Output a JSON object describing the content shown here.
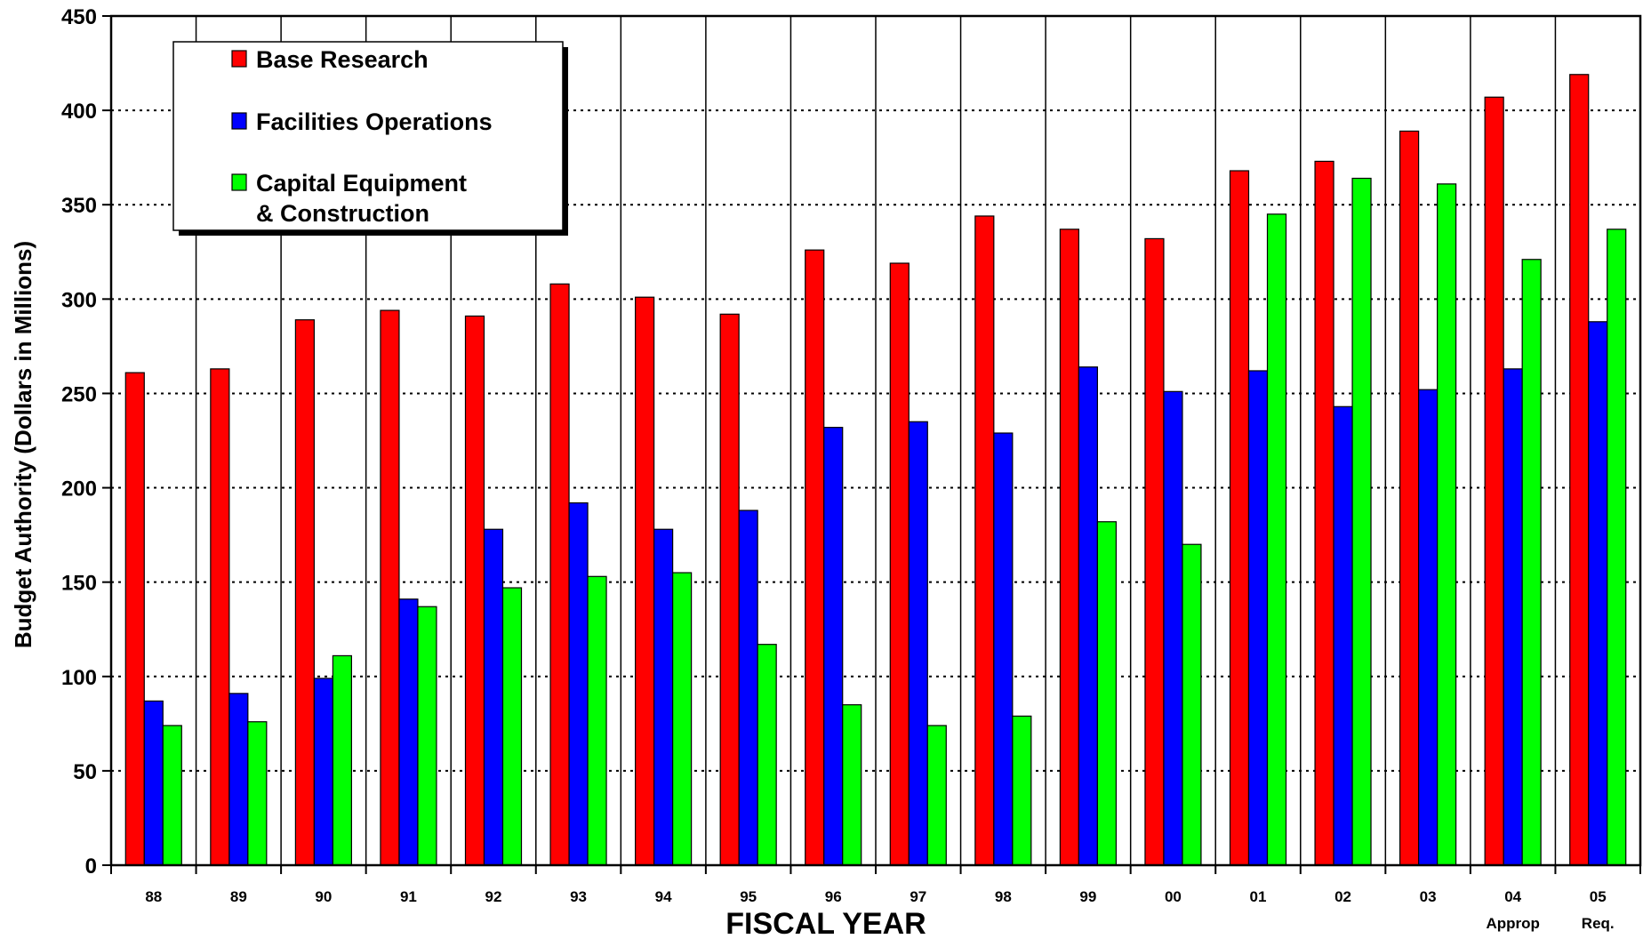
{
  "chart_data": {
    "type": "bar",
    "title": "",
    "xlabel": "FISCAL YEAR",
    "ylabel": "Budget Authority (Dollars in Millions)",
    "ylim": [
      0,
      450
    ],
    "yticks": [
      0,
      50,
      100,
      150,
      200,
      250,
      300,
      350,
      400,
      450
    ],
    "grid": "horizontal dotted, vertical solid",
    "legend_position": "top-left",
    "categories": [
      "88",
      "89",
      "90",
      "91",
      "92",
      "93",
      "94",
      "95",
      "96",
      "97",
      "98",
      "99",
      "00",
      "01",
      "02",
      "03",
      "04",
      "05"
    ],
    "category_sublabels": [
      "",
      "",
      "",
      "",
      "",
      "",
      "",
      "",
      "",
      "",
      "",
      "",
      "",
      "",
      "",
      "",
      "Approp",
      "Req."
    ],
    "series": [
      {
        "name": "Base Research",
        "color": "#ff0000",
        "values": [
          261,
          263,
          289,
          294,
          291,
          308,
          301,
          292,
          326,
          319,
          344,
          337,
          332,
          368,
          373,
          389,
          407,
          419
        ]
      },
      {
        "name": "Facilities Operations",
        "color": "#0000ff",
        "values": [
          87,
          91,
          99,
          141,
          178,
          192,
          178,
          188,
          232,
          235,
          229,
          264,
          251,
          262,
          243,
          252,
          263,
          288
        ]
      },
      {
        "name": "Capital Equipment & Construction",
        "legend_lines": [
          "Capital Equipment",
          "& Construction"
        ],
        "color": "#00ff00",
        "values": [
          74,
          76,
          111,
          137,
          147,
          153,
          155,
          117,
          85,
          74,
          79,
          182,
          170,
          345,
          364,
          361,
          321,
          337
        ]
      }
    ]
  }
}
